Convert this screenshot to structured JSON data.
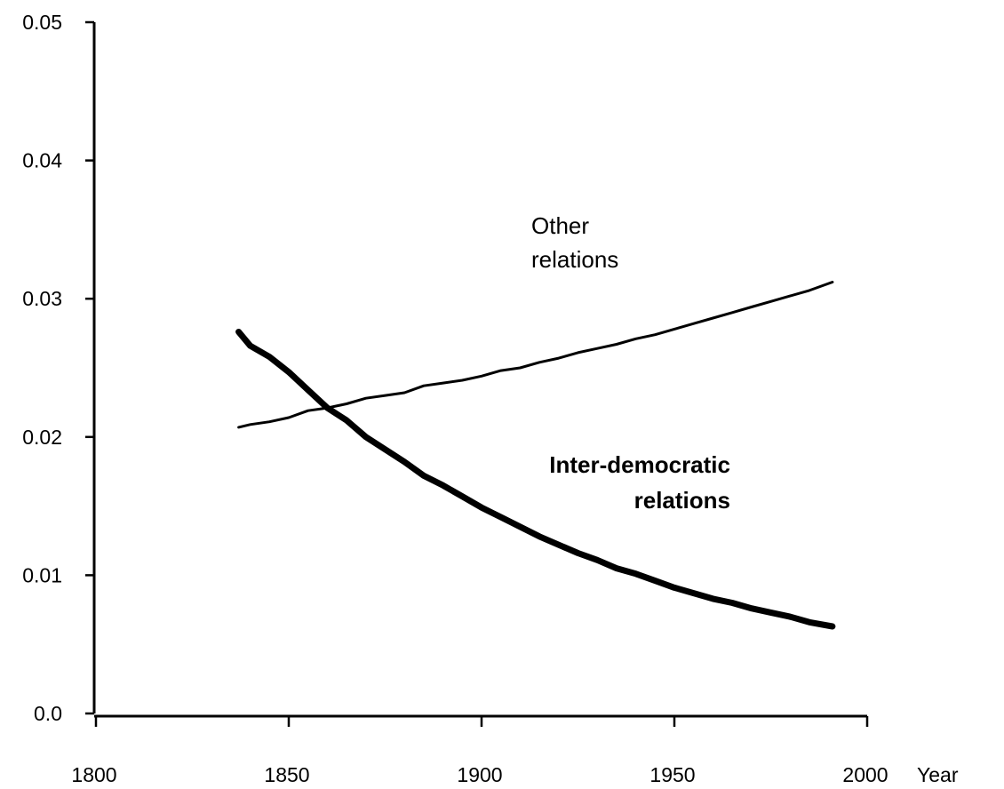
{
  "chart_data": {
    "type": "line",
    "xlabel": "Year",
    "ylabel": "",
    "xlim": [
      1800,
      2000
    ],
    "ylim": [
      0.0,
      0.05
    ],
    "x_ticks": [
      "1800",
      "1850",
      "1900",
      "1950",
      "2000"
    ],
    "y_ticks": [
      "0.0",
      "0.01",
      "0.02",
      "0.03",
      "0.04",
      "0.05"
    ],
    "grid": false,
    "series": [
      {
        "name": "Other relations",
        "label_lines": [
          "Other",
          "relations"
        ],
        "x": [
          1837,
          1840,
          1845,
          1850,
          1855,
          1860,
          1865,
          1870,
          1875,
          1880,
          1885,
          1890,
          1895,
          1900,
          1905,
          1910,
          1915,
          1920,
          1925,
          1930,
          1935,
          1940,
          1945,
          1950,
          1955,
          1960,
          1965,
          1970,
          1975,
          1980,
          1985,
          1991
        ],
        "y": [
          0.0207,
          0.0209,
          0.0211,
          0.0214,
          0.0219,
          0.0221,
          0.0224,
          0.0228,
          0.023,
          0.0232,
          0.0237,
          0.0239,
          0.0241,
          0.0244,
          0.0248,
          0.025,
          0.0254,
          0.0257,
          0.0261,
          0.0264,
          0.0267,
          0.0271,
          0.0274,
          0.0278,
          0.0282,
          0.0286,
          0.029,
          0.0294,
          0.0298,
          0.0302,
          0.0306,
          0.0312
        ]
      },
      {
        "name": "Inter-democratic relations",
        "label_lines": [
          "Inter-democratic",
          "relations"
        ],
        "x": [
          1837,
          1840,
          1845,
          1850,
          1855,
          1860,
          1865,
          1870,
          1875,
          1880,
          1885,
          1890,
          1895,
          1900,
          1905,
          1910,
          1915,
          1920,
          1925,
          1930,
          1935,
          1940,
          1945,
          1950,
          1955,
          1960,
          1965,
          1970,
          1975,
          1980,
          1985,
          1991
        ],
        "y": [
          0.0276,
          0.0266,
          0.0258,
          0.0247,
          0.0234,
          0.0221,
          0.0212,
          0.02,
          0.0191,
          0.0182,
          0.0172,
          0.0165,
          0.0157,
          0.0149,
          0.0142,
          0.0135,
          0.0128,
          0.0122,
          0.0116,
          0.0111,
          0.0105,
          0.0101,
          0.0096,
          0.0091,
          0.0087,
          0.0083,
          0.008,
          0.0076,
          0.0073,
          0.007,
          0.0066,
          0.0063
        ]
      }
    ]
  }
}
